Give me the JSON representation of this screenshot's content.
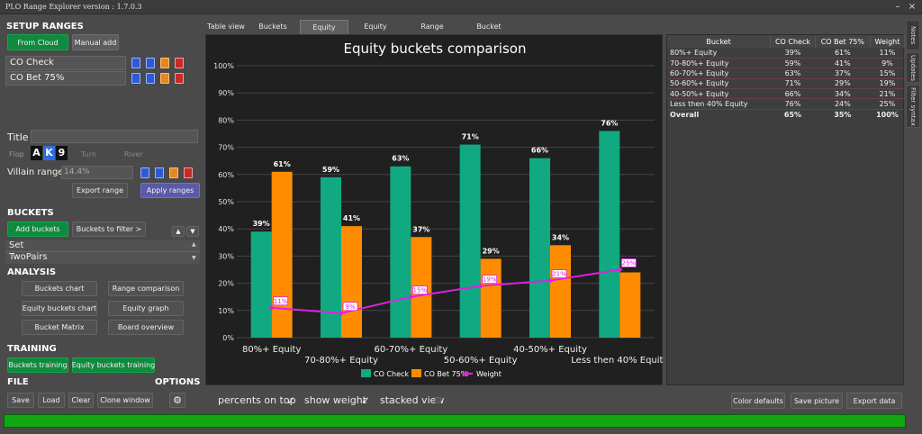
{
  "app": {
    "title": "PLO Range Explorer version : 1.7.0.3",
    "minimize": "–",
    "close": "×"
  },
  "setup": {
    "heading": "SETUP RANGES",
    "from_cloud": "From Cloud",
    "manual_add": "Manual add",
    "ranges": [
      "CO Check",
      "CO Bet 75%"
    ]
  },
  "board": {
    "title_label": "Title",
    "flop_label": "Flop",
    "cards": [
      "A",
      "K",
      "9"
    ],
    "card_colors": [
      "#111111",
      "#2d6cdf",
      "#111111"
    ],
    "turn_label": "Turn",
    "river_label": "River",
    "villain_label": "Villain range",
    "villain_value": "14.4%",
    "export_range": "Export range",
    "apply_ranges": "Apply ranges"
  },
  "buckets": {
    "heading": "BUCKETS",
    "add_buckets": "Add buckets",
    "to_filter": "Buckets to filter >",
    "items": [
      "Set",
      "TwoPairs"
    ]
  },
  "analysis": {
    "heading": "ANALYSIS",
    "buttons": [
      "Buckets chart",
      "Range comparison",
      "Equity buckets chart",
      "Equity graph",
      "Bucket Matrix",
      "Board overview"
    ]
  },
  "training": {
    "heading": "TRAINING",
    "buttons": [
      "Buckets training",
      "Equity buckets training"
    ]
  },
  "file": {
    "heading": "FILE",
    "options_heading": "OPTIONS",
    "buttons": [
      "Save",
      "Load",
      "Clear",
      "Clone window"
    ]
  },
  "tabs": [
    "Table view",
    "Buckets chart",
    "Equity buckets",
    "Equity graph",
    "Range Comparison",
    "Bucket Matrix"
  ],
  "right_tabs": [
    "Notes",
    "Updates",
    "Filter syntax"
  ],
  "chart_data": {
    "type": "bar",
    "title": "Equity buckets comparison",
    "categories": [
      "80%+ Equity",
      "70-80%+ Equity",
      "60-70%+ Equity",
      "50-60%+ Equity",
      "40-50%+ Equity",
      "Less then 40% Equity"
    ],
    "series": [
      {
        "name": "CO Check",
        "values": [
          39,
          59,
          63,
          71,
          66,
          76
        ],
        "labels": [
          "39%",
          "59%",
          "63%",
          "71%",
          "66%",
          "76%"
        ],
        "color": "#10a981"
      },
      {
        "name": "CO Bet 75%",
        "values": [
          61,
          41,
          37,
          29,
          34,
          24
        ],
        "labels": [
          "61%",
          "41%",
          "37%",
          "29%",
          "34%",
          ""
        ],
        "color": "#ff8c00"
      }
    ],
    "line": {
      "name": "Weight",
      "values": [
        11,
        9,
        15,
        19,
        21,
        25
      ],
      "labels": [
        "11%",
        "9%",
        "15%",
        "19%",
        "21%",
        "25%"
      ],
      "color": "#e020e0"
    },
    "yticks": [
      "0%",
      "10%",
      "20%",
      "30%",
      "40%",
      "50%",
      "60%",
      "70%",
      "80%",
      "90%",
      "100%"
    ],
    "ylim": [
      0,
      100
    ],
    "legend_position": "bottom"
  },
  "table": {
    "headers": [
      "Bucket",
      "CO Check",
      "CO Bet 75%",
      "Weight"
    ],
    "rows": [
      [
        "80%+ Equity",
        "39%",
        "61%",
        "11%"
      ],
      [
        "70-80%+ Equity",
        "59%",
        "41%",
        "9%"
      ],
      [
        "60-70%+ Equity",
        "63%",
        "37%",
        "15%"
      ],
      [
        "50-60%+ Equity",
        "71%",
        "29%",
        "19%"
      ],
      [
        "40-50%+ Equity",
        "66%",
        "34%",
        "21%"
      ],
      [
        "Less then 40% Equity",
        "76%",
        "24%",
        "25%"
      ]
    ],
    "overall": [
      "Overall",
      "65%",
      "35%",
      "100%"
    ]
  },
  "options": {
    "percents_on_top": "percents on top",
    "show_weight": "show weight",
    "stacked_view": "stacked view",
    "check": "✓"
  },
  "bottom_buttons": [
    "Color defaults",
    "Save picture",
    "Export data"
  ],
  "progress": {
    "value": 1.0
  }
}
